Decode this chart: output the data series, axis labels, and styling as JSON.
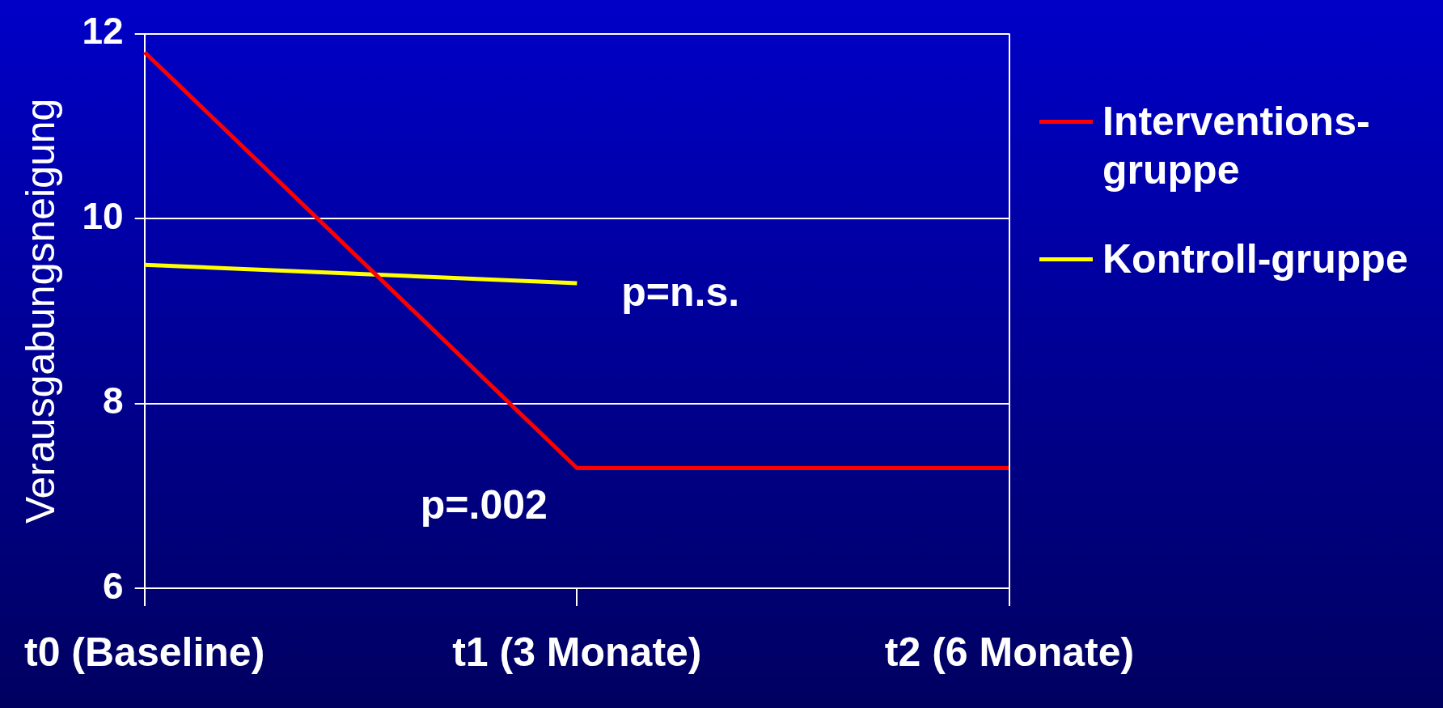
{
  "chart_data": {
    "type": "line",
    "ylabel": "Verausgabungsneigung",
    "categories": [
      "t0 (Baseline)",
      "t1 (3 Monate)",
      "t2 (6 Monate)"
    ],
    "series": [
      {
        "name": "Interventions-gruppe",
        "color": "#ff0000",
        "values": [
          11.8,
          7.3,
          7.3
        ]
      },
      {
        "name": "Kontroll-gruppe",
        "color": "#ffff00",
        "values": [
          9.5,
          9.3,
          null
        ]
      }
    ],
    "ylim": [
      6,
      12
    ],
    "yticks": [
      6,
      8,
      10,
      12
    ],
    "grid": "y",
    "legend": "right",
    "marker": "none",
    "line_style": "solid",
    "annotations": [
      "p=n.s.",
      "p=.002"
    ]
  }
}
